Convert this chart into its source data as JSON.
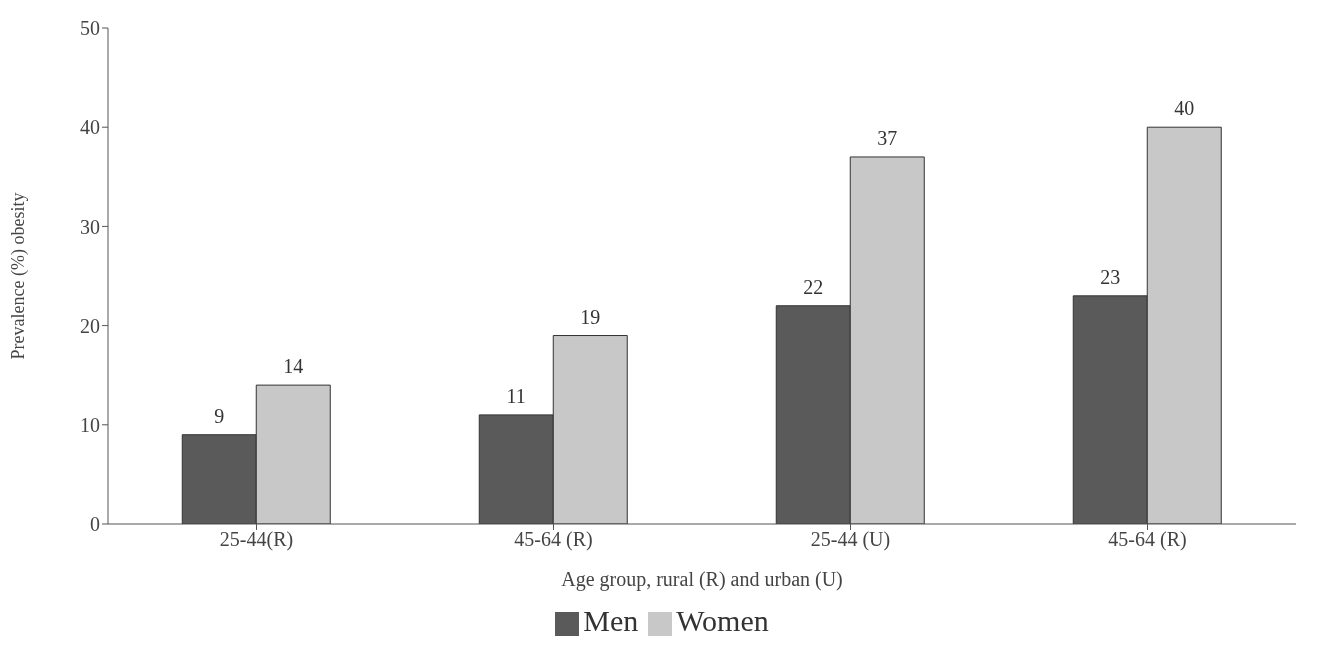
{
  "chart_data": {
    "type": "bar",
    "xlabel": "Age group, rural (R) and urban (U)",
    "ylabel": "Prevalence (%) obesity",
    "categories": [
      "25-44(R)",
      "45-64 (R)",
      "25-44 (U)",
      "45-64 (R)"
    ],
    "series": [
      {
        "name": "Men",
        "color": "#5a5a5a",
        "values": [
          9,
          11,
          22,
          23
        ]
      },
      {
        "name": "Women",
        "color": "#c8c8c8",
        "values": [
          14,
          19,
          37,
          40
        ]
      }
    ],
    "ylim": [
      0,
      50
    ],
    "yticks": [
      0,
      10,
      20,
      30,
      40,
      50
    ],
    "data_labels": true,
    "grid": false,
    "legend": "bottom"
  }
}
